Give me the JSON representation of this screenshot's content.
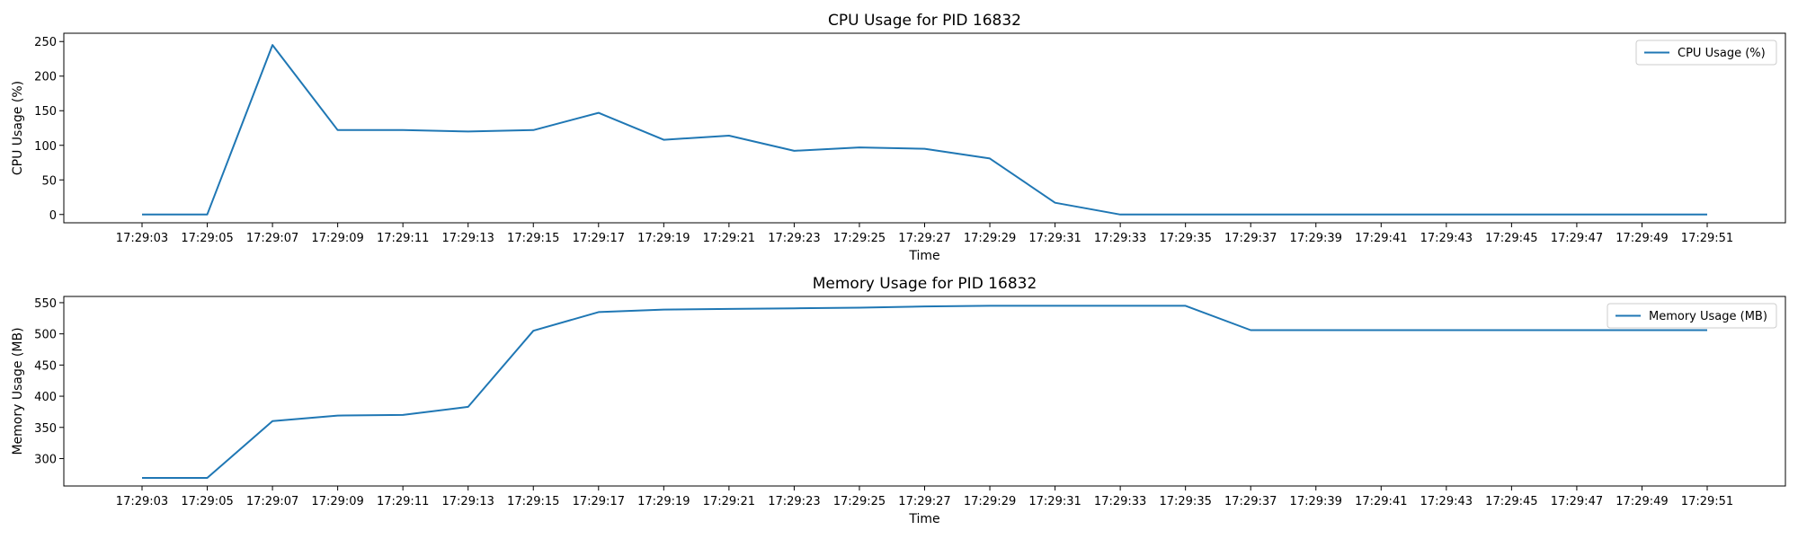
{
  "chart_data": [
    {
      "type": "line",
      "title": "CPU Usage for PID 16832",
      "xlabel": "Time",
      "ylabel": "CPU Usage (%)",
      "ylim": [
        -12,
        262
      ],
      "yticks": [
        0,
        50,
        100,
        150,
        200,
        250
      ],
      "grid": false,
      "legend_position": "top-right",
      "x": [
        "17:29:03",
        "17:29:05",
        "17:29:07",
        "17:29:09",
        "17:29:11",
        "17:29:13",
        "17:29:15",
        "17:29:17",
        "17:29:19",
        "17:29:21",
        "17:29:23",
        "17:29:25",
        "17:29:27",
        "17:29:29",
        "17:29:31",
        "17:29:33",
        "17:29:35",
        "17:29:37",
        "17:29:39",
        "17:29:41",
        "17:29:43",
        "17:29:45",
        "17:29:47",
        "17:29:49",
        "17:29:51"
      ],
      "series": [
        {
          "name": "CPU Usage (%)",
          "color": "#1f77b4",
          "values": [
            0,
            0,
            245,
            122,
            122,
            120,
            122,
            147,
            108,
            114,
            92,
            97,
            95,
            81,
            17,
            0,
            0,
            0,
            0,
            0,
            0,
            0,
            0,
            0,
            0
          ]
        }
      ]
    },
    {
      "type": "line",
      "title": "Memory Usage for PID 16832",
      "xlabel": "Time",
      "ylabel": "Memory Usage (MB)",
      "ylim": [
        256,
        560
      ],
      "yticks": [
        300,
        350,
        400,
        450,
        500,
        550
      ],
      "grid": false,
      "legend_position": "top-right",
      "x": [
        "17:29:03",
        "17:29:05",
        "17:29:07",
        "17:29:09",
        "17:29:11",
        "17:29:13",
        "17:29:15",
        "17:29:17",
        "17:29:19",
        "17:29:21",
        "17:29:23",
        "17:29:25",
        "17:29:27",
        "17:29:29",
        "17:29:31",
        "17:29:33",
        "17:29:35",
        "17:29:37",
        "17:29:39",
        "17:29:41",
        "17:29:43",
        "17:29:45",
        "17:29:47",
        "17:29:49",
        "17:29:51"
      ],
      "series": [
        {
          "name": "Memory Usage (MB)",
          "color": "#1f77b4",
          "values": [
            269,
            269,
            360,
            369,
            370,
            383,
            505,
            535,
            539,
            540,
            541,
            542,
            544,
            545,
            545,
            545,
            545,
            506,
            506,
            506,
            506,
            506,
            506,
            506,
            506
          ]
        }
      ]
    }
  ]
}
